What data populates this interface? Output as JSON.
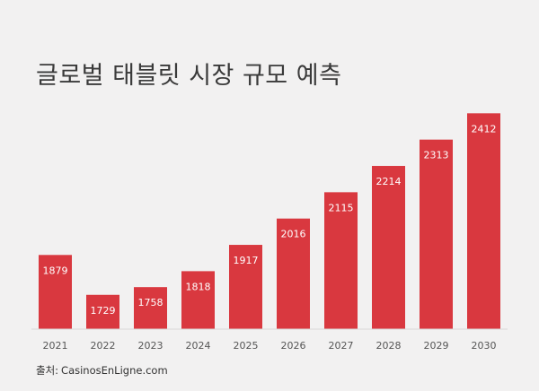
{
  "title": "글로벌 태블릿 시장 규모 예측",
  "source": {
    "prefix": "출처:",
    "name": "CasinosEnLigne.com"
  },
  "colors": {
    "bar": "#d9383f",
    "label": "#ffffff",
    "axis_text": "#555555",
    "background": "#f2f1f1"
  },
  "chart_data": {
    "type": "bar",
    "title": "글로벌 태블릿 시장 규모 예측",
    "categories": [
      "2021",
      "2022",
      "2023",
      "2024",
      "2025",
      "2026",
      "2027",
      "2028",
      "2029",
      "2030"
    ],
    "values": [
      1879,
      1729,
      1758,
      1818,
      1917,
      2016,
      2115,
      2214,
      2313,
      2412
    ],
    "xlabel": "",
    "ylabel": "",
    "ylim": [
      1600,
      2430
    ],
    "grid": false,
    "legend": "none",
    "data_labels": true
  }
}
